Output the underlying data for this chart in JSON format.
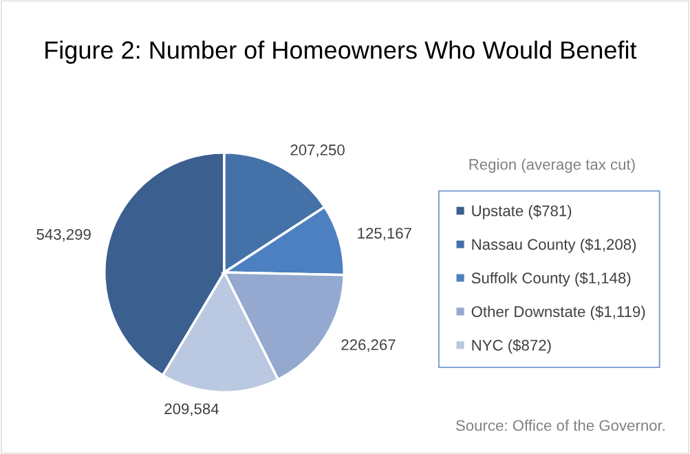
{
  "chart_data": {
    "type": "pie",
    "title": "Figure 2: Number of Homeowners Who Would Benefit",
    "categories": [
      "Upstate ($781)",
      "Nassau County ($1,208)",
      "Suffolk County ($1,148)",
      "Other Downstate ($1,119)",
      "NYC ($872)"
    ],
    "values": [
      543299,
      207250,
      125167,
      226267,
      209584
    ],
    "colors": [
      "#3b5f8e",
      "#4472a8",
      "#4c80c1",
      "#95a9d0",
      "#bac8e1"
    ],
    "data_labels": true,
    "value_labels": [
      "543,299",
      "207,250",
      "125,167",
      "226,267",
      "209,584"
    ],
    "legend": "right",
    "legend_title": "Region (average tax cut)",
    "annotations": [
      "Source: Office of the Governor."
    ]
  }
}
